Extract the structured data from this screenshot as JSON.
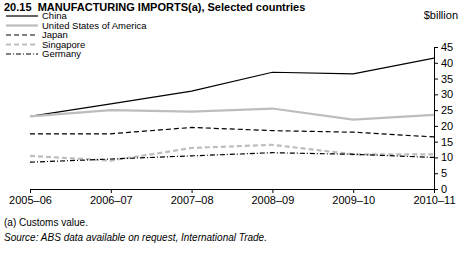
{
  "chart_data": {
    "type": "line",
    "title": "20.15  MANUFACTURING IMPORTS(a), Selected countries",
    "y_label": "$billion",
    "categories": [
      "2005–06",
      "2006–07",
      "2007–08",
      "2008–09",
      "2009–10",
      "2010–11"
    ],
    "series": [
      {
        "name": "China",
        "color": "#000000",
        "line_style": "solid",
        "values": [
          23,
          27,
          31,
          37,
          36.5,
          41.5
        ]
      },
      {
        "name": "United States of America",
        "color": "#bdbdbd",
        "line_style": "solid",
        "values": [
          23,
          25,
          24.5,
          25.5,
          22,
          23.5
        ]
      },
      {
        "name": "Japan",
        "color": "#000000",
        "line_style": "dashed",
        "values": [
          17.5,
          17.5,
          19.5,
          18.5,
          18,
          16.5
        ]
      },
      {
        "name": "Singapore",
        "color": "#bdbdbd",
        "line_style": "dashed",
        "values": [
          10.5,
          9,
          13,
          14,
          11,
          11
        ]
      },
      {
        "name": "Germany",
        "color": "#000000",
        "line_style": "dashdot",
        "values": [
          8.5,
          9.5,
          10.5,
          11.5,
          11,
          10
        ]
      }
    ],
    "ylim": [
      0,
      45
    ],
    "yticks": [
      0,
      5,
      10,
      15,
      20,
      25,
      30,
      35,
      40,
      45
    ],
    "grid": false,
    "legend": "top-left",
    "footnotes": [
      "(a) Customs value.",
      "Source: ABS data available on request, International Trade."
    ]
  }
}
